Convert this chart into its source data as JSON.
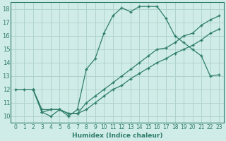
{
  "xlabel": "Humidex (Indice chaleur)",
  "ylabel": "",
  "xlim": [
    -0.5,
    23.5
  ],
  "ylim": [
    9.5,
    18.5
  ],
  "yticks": [
    10,
    11,
    12,
    13,
    14,
    15,
    16,
    17,
    18
  ],
  "xticks": [
    0,
    1,
    2,
    3,
    4,
    5,
    6,
    7,
    8,
    9,
    10,
    11,
    12,
    13,
    14,
    15,
    16,
    17,
    18,
    19,
    20,
    21,
    22,
    23
  ],
  "bg_color": "#d0ece8",
  "line_color": "#2e7d6b",
  "grid_color": "#b0d4cc",
  "line1_x": [
    0,
    1,
    2,
    3,
    4,
    5,
    6,
    7,
    8,
    9,
    10,
    11,
    12,
    13,
    14,
    15,
    16,
    17,
    18,
    19,
    20,
    21,
    22,
    23
  ],
  "line1_y": [
    12,
    12,
    12,
    10.3,
    10,
    10.5,
    10,
    10.5,
    13.5,
    14.3,
    16.2,
    17.5,
    18.1,
    17.8,
    18.2,
    18.2,
    18.2,
    17.3,
    16,
    15.5,
    15,
    14.5,
    13,
    13.1
  ],
  "line2_x": [
    2,
    3,
    4,
    5,
    6,
    7,
    8,
    9,
    10,
    11,
    12,
    13,
    14,
    15,
    16,
    17,
    18,
    19,
    20,
    21,
    22,
    23
  ],
  "line2_y": [
    12,
    10.3,
    10.5,
    10.5,
    10.2,
    10.2,
    11.0,
    11.5,
    12.0,
    12.5,
    13.0,
    13.5,
    14.0,
    14.5,
    15.0,
    15.1,
    15.5,
    16.0,
    16.2,
    16.8,
    17.2,
    17.5
  ],
  "line3_x": [
    2,
    3,
    4,
    5,
    6,
    7,
    8,
    9,
    10,
    11,
    12,
    13,
    14,
    15,
    16,
    17,
    18,
    19,
    20,
    21,
    22,
    23
  ],
  "line3_y": [
    12,
    10.5,
    10.5,
    10.5,
    10.2,
    10.2,
    10.5,
    11.0,
    11.5,
    12.0,
    12.3,
    12.8,
    13.2,
    13.6,
    14.0,
    14.3,
    14.7,
    15.0,
    15.3,
    15.7,
    16.2,
    16.5
  ]
}
